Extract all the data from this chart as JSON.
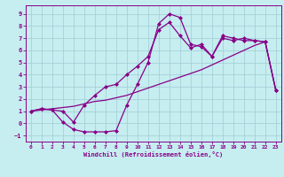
{
  "xlabel": "Windchill (Refroidissement éolien,°C)",
  "xlim": [
    -0.5,
    23.5
  ],
  "ylim": [
    -1.5,
    9.7
  ],
  "xticks": [
    0,
    1,
    2,
    3,
    4,
    5,
    6,
    7,
    8,
    9,
    10,
    11,
    12,
    13,
    14,
    15,
    16,
    17,
    18,
    19,
    20,
    21,
    22,
    23
  ],
  "yticks": [
    -1,
    0,
    1,
    2,
    3,
    4,
    5,
    6,
    7,
    8,
    9
  ],
  "bg_color": "#c6edf0",
  "grid_color": "#9ecdd4",
  "line_color": "#880088",
  "line1_x": [
    0,
    1,
    2,
    3,
    4,
    5,
    6,
    7,
    8,
    9,
    10,
    11,
    12,
    13,
    14,
    15,
    16,
    17,
    18,
    19,
    20,
    21,
    22,
    23
  ],
  "line1_y": [
    1.0,
    1.2,
    1.1,
    0.1,
    -0.5,
    -0.7,
    -0.7,
    -0.7,
    -0.6,
    1.5,
    3.2,
    5.0,
    8.2,
    9.0,
    8.7,
    6.5,
    6.3,
    5.5,
    7.2,
    7.0,
    6.8,
    6.8,
    6.7,
    2.7
  ],
  "line2_x": [
    0,
    1,
    2,
    3,
    4,
    5,
    6,
    7,
    8,
    9,
    10,
    11,
    12,
    13,
    14,
    15,
    16,
    17,
    18,
    19,
    20,
    21,
    22,
    23
  ],
  "line2_y": [
    1.0,
    1.1,
    1.2,
    1.3,
    1.4,
    1.6,
    1.8,
    1.9,
    2.1,
    2.3,
    2.6,
    2.9,
    3.2,
    3.5,
    3.8,
    4.1,
    4.4,
    4.8,
    5.2,
    5.6,
    6.0,
    6.4,
    6.7,
    2.7
  ],
  "line3_x": [
    0,
    1,
    2,
    3,
    4,
    5,
    6,
    7,
    8,
    9,
    10,
    11,
    12,
    13,
    14,
    15,
    16,
    17,
    18,
    19,
    20,
    21,
    22,
    23
  ],
  "line3_y": [
    1.0,
    1.2,
    1.1,
    1.0,
    0.1,
    1.5,
    2.3,
    3.0,
    3.2,
    4.0,
    4.7,
    5.5,
    7.7,
    8.3,
    7.2,
    6.2,
    6.5,
    5.5,
    7.0,
    6.8,
    7.0,
    6.8,
    6.7,
    2.7
  ]
}
